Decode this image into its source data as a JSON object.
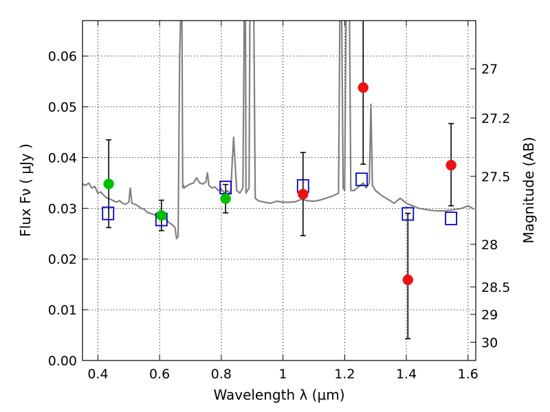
{
  "chart_data": {
    "type": "scatter",
    "title": "",
    "xlabel": "Wavelength  λ (μm)",
    "ylabel": "Flux  Fν  ( μJy )",
    "y2label": "Magnitude (AB)",
    "xlim": [
      0.35,
      1.625
    ],
    "ylim": [
      0.0,
      0.067
    ],
    "grid": true,
    "x_ticks": [
      0.4,
      0.6,
      0.8,
      1.0,
      1.2,
      1.4,
      1.6
    ],
    "x_tick_labels": [
      "0.4",
      "0.6",
      "0.8",
      "1",
      "1.2",
      "1.4",
      "1.6"
    ],
    "y_ticks": [
      0.0,
      0.01,
      0.02,
      0.03,
      0.04,
      0.05,
      0.06
    ],
    "y_tick_labels": [
      "0.00",
      "0.01",
      "0.02",
      "0.03",
      "0.04",
      "0.05",
      "0.06"
    ],
    "y2_ticks": [
      {
        "label": "27",
        "flux": 0.0575
      },
      {
        "label": "27.2",
        "flux": 0.0478
      },
      {
        "label": "27.5",
        "flux": 0.0363
      },
      {
        "label": "28",
        "flux": 0.0229
      },
      {
        "label": "28.5",
        "flux": 0.0145
      },
      {
        "label": "29",
        "flux": 0.0091
      },
      {
        "label": "30",
        "flux": 0.0036
      }
    ],
    "colors": {
      "model": "#808080",
      "green": "#00c000",
      "red": "#ee1111",
      "box": "#0000cc",
      "errorbar": "#000000"
    },
    "series": [
      {
        "kind": "line",
        "color": "model",
        "x": [
          0.35,
          0.36,
          0.37,
          0.38,
          0.39,
          0.4,
          0.41,
          0.42,
          0.43,
          0.44,
          0.45,
          0.46,
          0.47,
          0.48,
          0.49,
          0.5,
          0.505,
          0.51,
          0.52,
          0.53,
          0.54,
          0.55,
          0.56,
          0.57,
          0.58,
          0.59,
          0.6,
          0.61,
          0.62,
          0.63,
          0.64,
          0.65,
          0.655,
          0.66,
          0.665,
          0.67,
          0.672,
          0.675,
          0.678,
          0.68,
          0.69,
          0.7,
          0.71,
          0.72,
          0.73,
          0.74,
          0.75,
          0.755,
          0.76,
          0.77,
          0.78,
          0.79,
          0.8,
          0.81,
          0.82,
          0.83,
          0.84,
          0.85,
          0.86,
          0.87,
          0.875,
          0.878,
          0.88,
          0.885,
          0.89,
          0.893,
          0.895,
          0.9,
          0.905,
          0.91,
          0.92,
          0.94,
          0.96,
          0.98,
          1.0,
          1.02,
          1.04,
          1.06,
          1.08,
          1.1,
          1.12,
          1.14,
          1.16,
          1.18,
          1.185,
          1.19,
          1.195,
          1.2,
          1.205,
          1.21,
          1.215,
          1.22,
          1.23,
          1.24,
          1.25,
          1.26,
          1.27,
          1.28,
          1.285,
          1.29,
          1.3,
          1.32,
          1.34,
          1.36,
          1.38,
          1.4,
          1.42,
          1.44,
          1.46,
          1.48,
          1.5,
          1.52,
          1.54,
          1.56,
          1.58,
          1.6,
          1.62
        ],
        "y": [
          0.0348,
          0.0345,
          0.035,
          0.034,
          0.0343,
          0.033,
          0.0332,
          0.0325,
          0.032,
          0.0318,
          0.0315,
          0.0312,
          0.0315,
          0.031,
          0.0308,
          0.0312,
          0.034,
          0.031,
          0.0308,
          0.0305,
          0.03,
          0.0298,
          0.0292,
          0.029,
          0.0288,
          0.0285,
          0.0283,
          0.028,
          0.0278,
          0.0272,
          0.0268,
          0.0262,
          0.024,
          0.0245,
          0.06,
          0.072,
          0.072,
          0.034,
          0.0345,
          0.034,
          0.0345,
          0.0348,
          0.035,
          0.036,
          0.035,
          0.0348,
          0.0352,
          0.037,
          0.0345,
          0.034,
          0.0342,
          0.0335,
          0.0338,
          0.033,
          0.0335,
          0.0328,
          0.044,
          0.0335,
          0.033,
          0.034,
          0.072,
          0.072,
          0.033,
          0.0335,
          0.034,
          0.072,
          0.072,
          0.072,
          0.072,
          0.032,
          0.0315,
          0.0312,
          0.031,
          0.0314,
          0.0312,
          0.0312,
          0.0313,
          0.0318,
          0.0315,
          0.0314,
          0.0316,
          0.032,
          0.0324,
          0.033,
          0.072,
          0.072,
          0.034,
          0.0335,
          0.072,
          0.072,
          0.072,
          0.0335,
          0.0335,
          0.034,
          0.0345,
          0.035,
          0.034,
          0.035,
          0.0505,
          0.0345,
          0.0335,
          0.0325,
          0.0318,
          0.031,
          0.032,
          0.031,
          0.0305,
          0.03,
          0.0298,
          0.0296,
          0.0295,
          0.0295,
          0.0296,
          0.0298,
          0.03,
          0.0305,
          0.0298
        ]
      },
      {
        "kind": "points",
        "marker": "square",
        "color": "box",
        "points": [
          {
            "x": 0.433,
            "y": 0.029
          },
          {
            "x": 0.606,
            "y": 0.0278
          },
          {
            "x": 0.814,
            "y": 0.0341
          },
          {
            "x": 1.065,
            "y": 0.0344
          },
          {
            "x": 1.255,
            "y": 0.0357
          },
          {
            "x": 1.405,
            "y": 0.0289
          },
          {
            "x": 1.545,
            "y": 0.028
          }
        ]
      },
      {
        "kind": "points",
        "marker": "circle",
        "color": "green",
        "points": [
          {
            "x": 0.435,
            "y": 0.0348,
            "ylo": 0.0262,
            "yhi": 0.0435
          },
          {
            "x": 0.606,
            "y": 0.0286,
            "ylo": 0.0256,
            "yhi": 0.0316
          },
          {
            "x": 0.814,
            "y": 0.0319,
            "ylo": 0.0291,
            "yhi": 0.0347
          }
        ]
      },
      {
        "kind": "points",
        "marker": "circle",
        "color": "red",
        "points": [
          {
            "x": 1.065,
            "y": 0.0328,
            "ylo": 0.0246,
            "yhi": 0.041
          },
          {
            "x": 1.26,
            "y": 0.0538,
            "ylo": 0.0387,
            "yhi": 0.068
          },
          {
            "x": 1.405,
            "y": 0.0159,
            "ylo": 0.0043,
            "yhi": 0.029
          },
          {
            "x": 1.545,
            "y": 0.0385,
            "ylo": 0.0305,
            "yhi": 0.0467
          }
        ]
      }
    ]
  }
}
